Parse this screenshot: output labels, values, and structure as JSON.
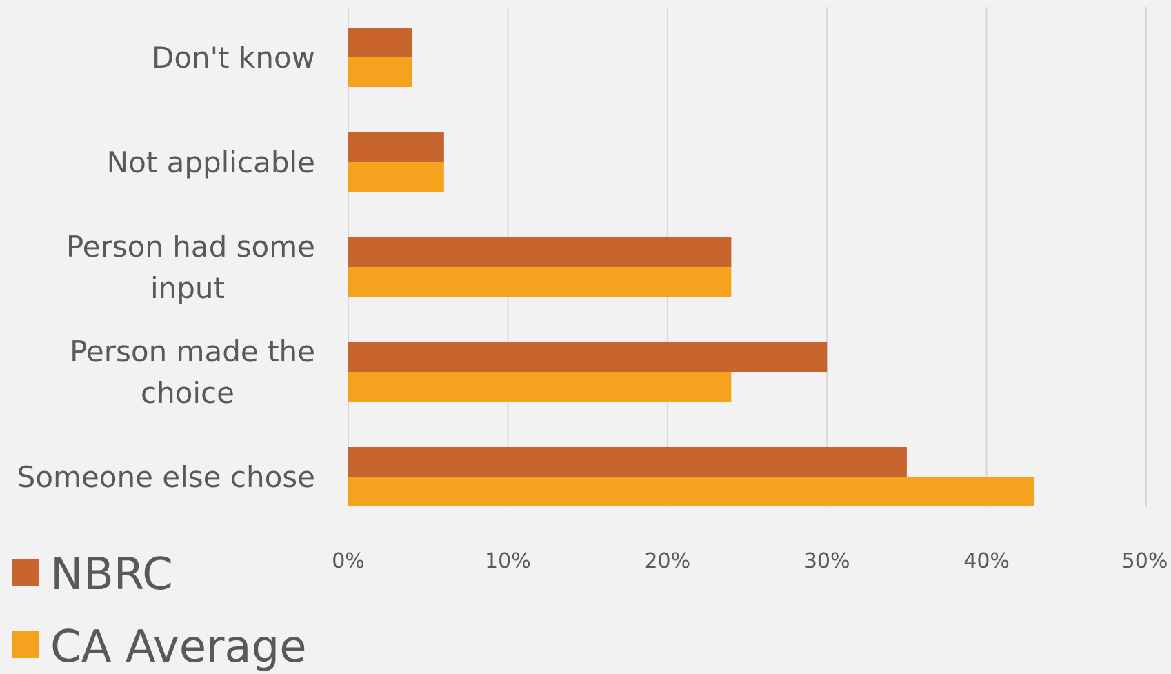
{
  "chart_data": {
    "type": "bar",
    "orientation": "horizontal",
    "categories": [
      "Don't know",
      "Not applicable",
      "Person had some input",
      "Person made the choice",
      "Someone else chose"
    ],
    "category_lines": [
      [
        "Don't know"
      ],
      [
        "Not applicable"
      ],
      [
        "Person had some",
        "input"
      ],
      [
        "Person made the",
        "choice"
      ],
      [
        "Someone else chose"
      ]
    ],
    "series": [
      {
        "name": "NBRC",
        "color": "#c8652f",
        "values": [
          4,
          6,
          24,
          30,
          35
        ]
      },
      {
        "name": "CA Average",
        "color": "#f5a31e",
        "values": [
          4,
          6,
          24,
          24,
          43
        ]
      }
    ],
    "xlim": [
      0,
      50
    ],
    "xticks": [
      0,
      10,
      20,
      30,
      40,
      50
    ],
    "xtick_labels": [
      "0%",
      "10%",
      "20%",
      "30%",
      "40%",
      "50%"
    ],
    "grid": "vertical",
    "legend": "bottom-left",
    "background": "#f2f2f2"
  }
}
